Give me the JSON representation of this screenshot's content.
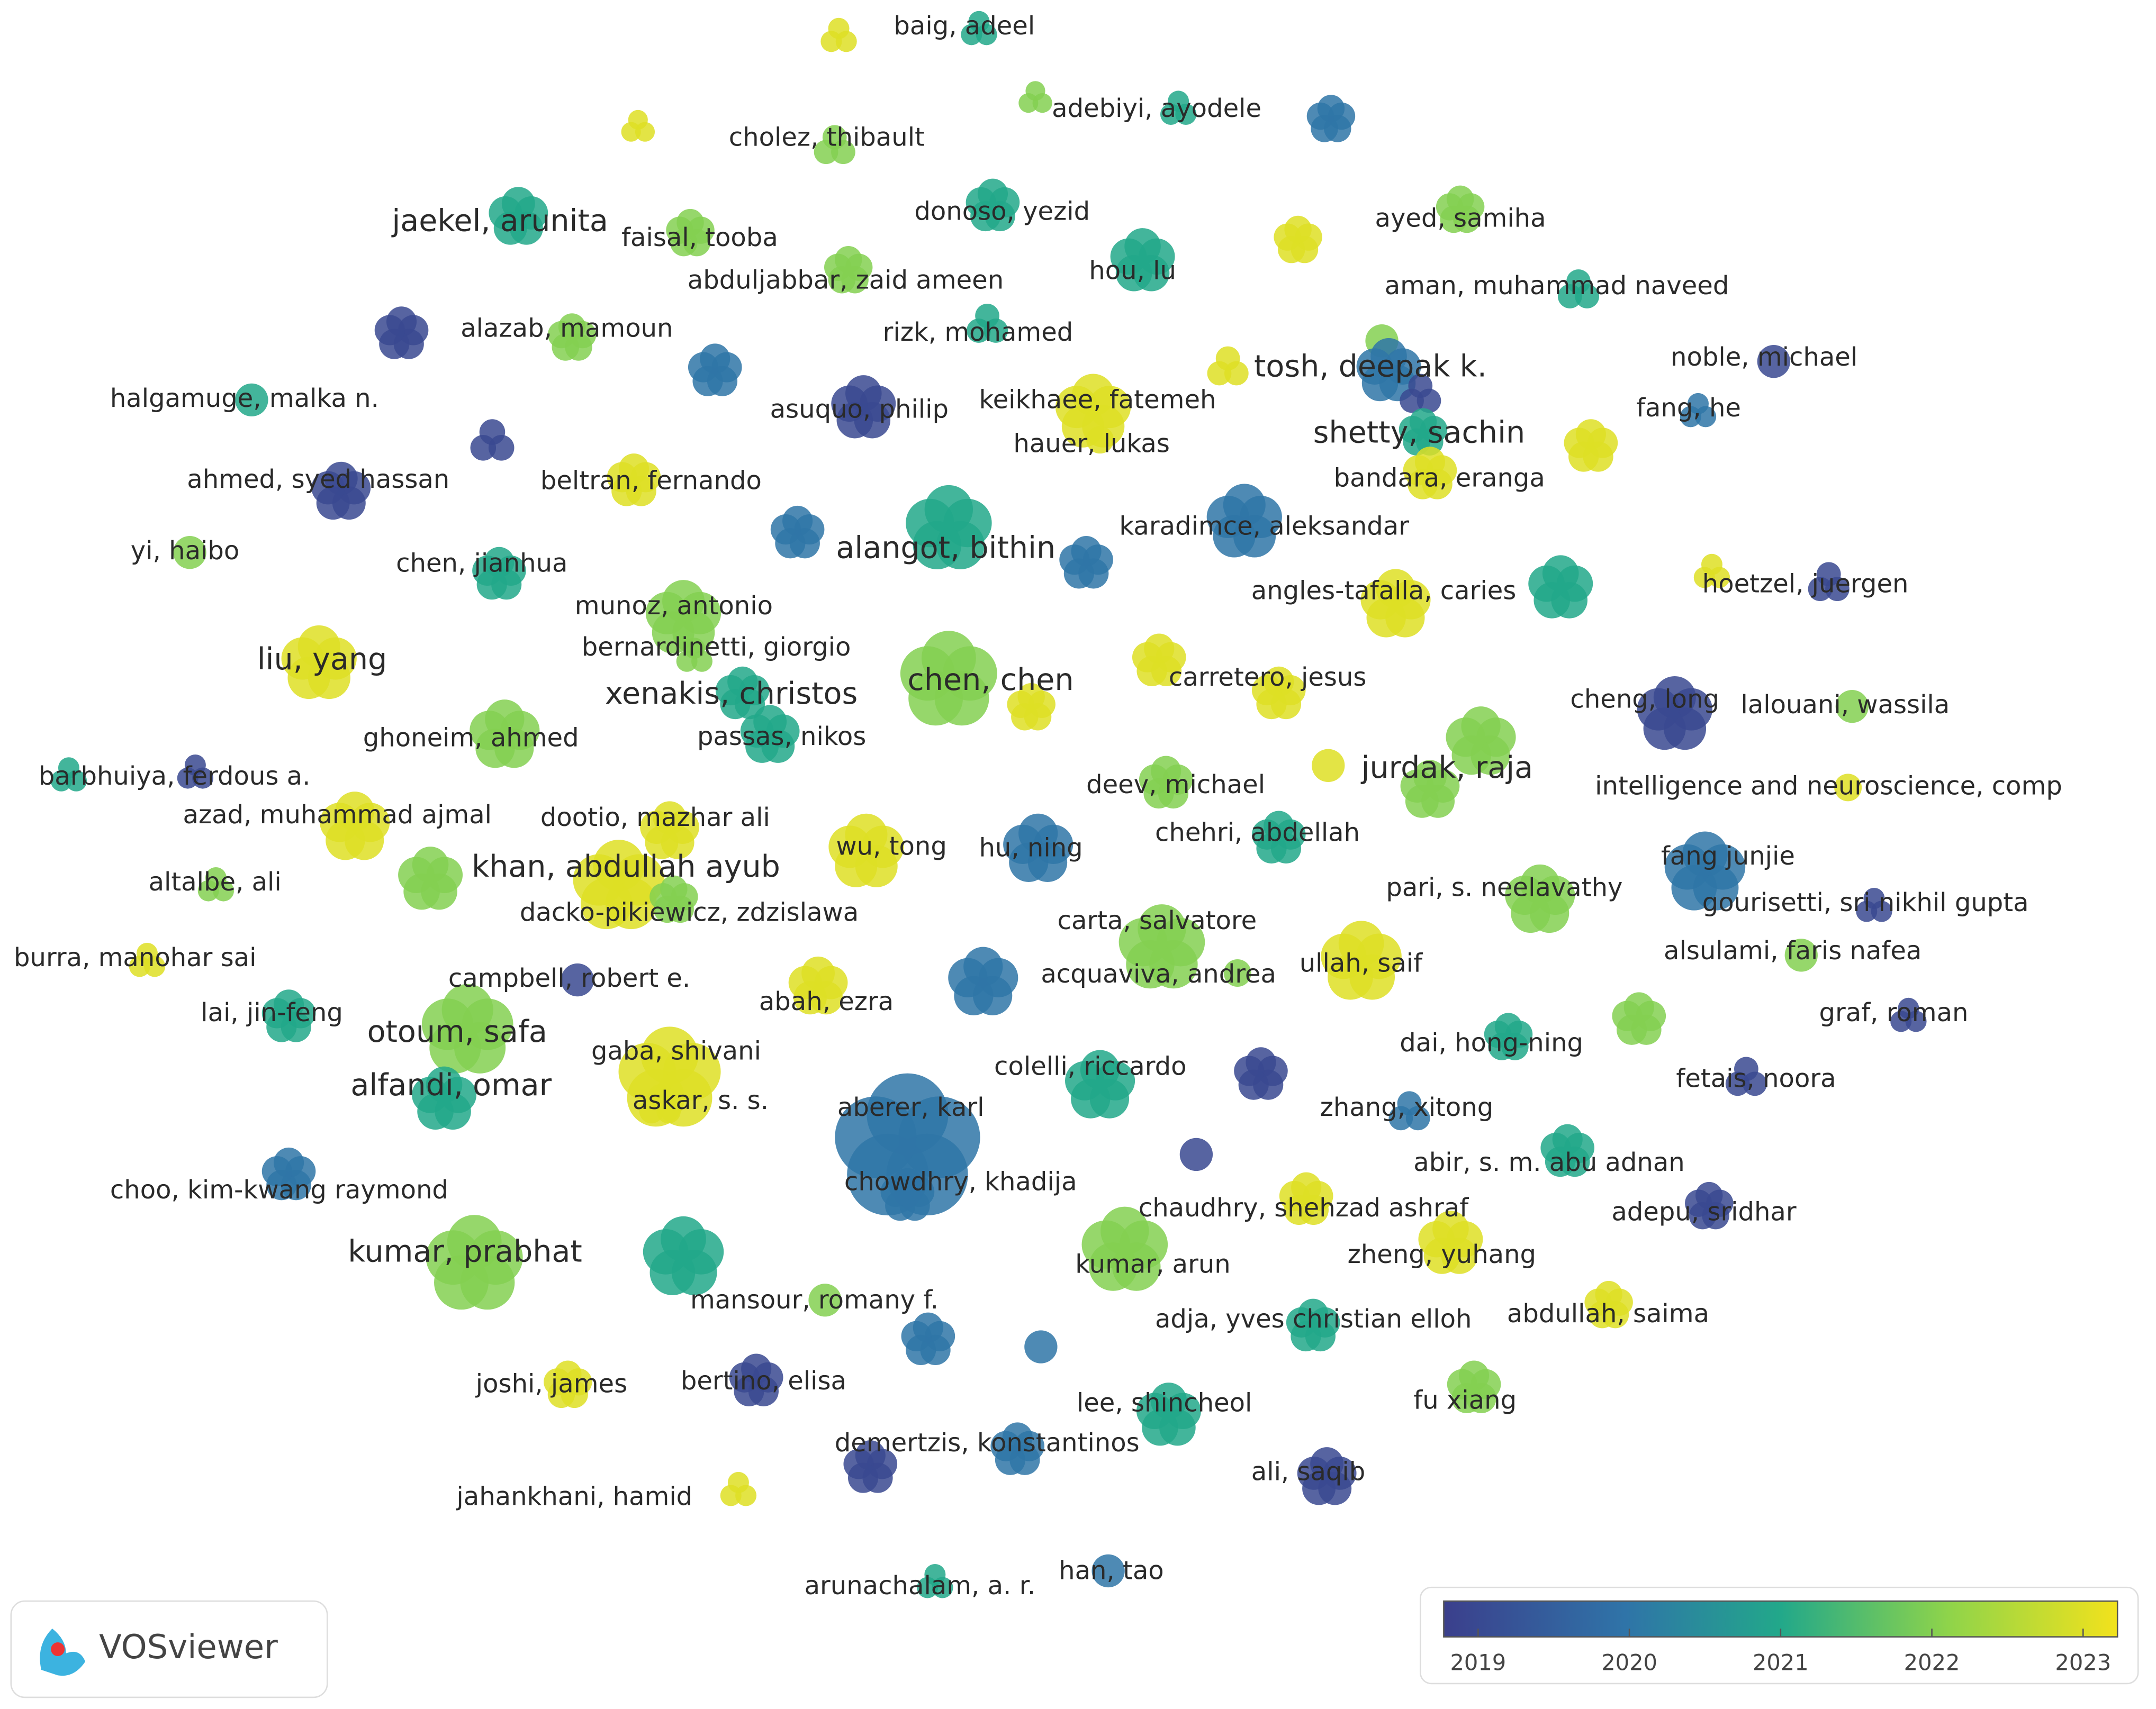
{
  "logo": "VOSviewer",
  "legend": {
    "ticks": [
      2019,
      2020,
      2021,
      2022,
      2023
    ]
  },
  "nodes": [
    {
      "year": 2023
    },
    {
      "label": "baig, adeel",
      "year": 2021
    },
    {
      "year": 2023
    },
    {
      "year": 2022
    },
    {
      "label": "adebiyi, ayodele",
      "year": 2021
    },
    {
      "year": 2020
    },
    {
      "label": "cholez, thibault",
      "year": 2022
    },
    {
      "label": "jaekel, arunita",
      "year": 2021
    },
    {
      "label": "faisal, tooba",
      "year": 2022
    },
    {
      "label": "donoso, yezid",
      "year": 2021
    },
    {
      "label": "ayed, samiha",
      "year": 2022
    },
    {
      "year": 2023
    },
    {
      "label": "abduljabbar, zaid ameen",
      "year": 2022
    },
    {
      "label": "hou, lu",
      "year": 2021
    },
    {
      "label": "aman, muhammad naveed",
      "year": 2021
    },
    {
      "year": 2019
    },
    {
      "label": "alazab, mamoun",
      "year": 2022
    },
    {
      "label": "rizk, mohamed",
      "year": 2021
    },
    {
      "year": 2020
    },
    {
      "year": 2022
    },
    {
      "label": "tosh, deepak k.",
      "year": 2020
    },
    {
      "year": 2023
    },
    {
      "year": 2019
    },
    {
      "label": "noble, michael",
      "year": 2019
    },
    {
      "label": "halgamuge, malka n.",
      "year": 2021
    },
    {
      "label": "asuquo, philip",
      "year": 2019
    },
    {
      "label": "keikhaee, fatemeh",
      "year": 2023
    },
    {
      "label": "hauer, lukas",
      "year": 2023
    },
    {
      "label": "fang, he",
      "year": 2020
    },
    {
      "label": "shetty, sachin",
      "year": 2021
    },
    {
      "year": 2023
    },
    {
      "year": 2019
    },
    {
      "label": "ahmed, syed hassan",
      "year": 2019
    },
    {
      "label": "beltran, fernando",
      "year": 2023
    },
    {
      "label": "bandara, eranga",
      "year": 2023
    },
    {
      "year": 2020
    },
    {
      "label": "alangot, bithin",
      "year": 2021
    },
    {
      "label": "karadimce, aleksandar",
      "year": 2020
    },
    {
      "year": 2020
    },
    {
      "label": "yi, haibo",
      "year": 2022
    },
    {
      "label": "chen, jianhua",
      "year": 2021
    },
    {
      "label": "angles-tafalla, caries",
      "year": 2023
    },
    {
      "year": 2021
    },
    {
      "year": 2023
    },
    {
      "label": "hoetzel, juergen",
      "year": 2019
    },
    {
      "label": "munoz, antonio",
      "year": 2022
    },
    {
      "label": "bernardinetti, giorgio",
      "year": 2022
    },
    {
      "label": "liu, yang",
      "year": 2023
    },
    {
      "label": "xenakis, christos",
      "year": 2021
    },
    {
      "label": "chen, chen",
      "year": 2022
    },
    {
      "year": 2023
    },
    {
      "year": 2023
    },
    {
      "label": "carretero, jesus",
      "year": 2023
    },
    {
      "label": "cheng, long",
      "year": 2019
    },
    {
      "label": "lalouani, wassila",
      "year": 2022
    },
    {
      "year": 2022
    },
    {
      "label": "jurdak, raja",
      "year": 2022
    },
    {
      "year": 2023
    },
    {
      "label": "ghoneim, ahmed",
      "year": 2022
    },
    {
      "label": "passas, nikos",
      "year": 2021
    },
    {
      "label": "barbhuiya, ferdous a.",
      "year": 2021
    },
    {
      "year": 2019
    },
    {
      "label": "deev, michael",
      "year": 2022
    },
    {
      "label": "intelligence and neuroscience, comp",
      "year": 2023
    },
    {
      "label": "azad, muhammad ajmal",
      "year": 2023
    },
    {
      "label": "dootio, mazhar ali",
      "year": 2023
    },
    {
      "year": 2022
    },
    {
      "label": "khan, abdullah ayub",
      "year": 2023
    },
    {
      "label": "dacko-pikiewicz, zdzislawa",
      "year": 2022
    },
    {
      "label": "wu, tong",
      "year": 2023
    },
    {
      "label": "hu, ning",
      "year": 2020
    },
    {
      "label": "chehri, abdellah",
      "year": 2021
    },
    {
      "label": "fang junjie",
      "year": 2020
    },
    {
      "label": "altalbe, ali",
      "year": 2022
    },
    {
      "label": "pari, s. neelavathy",
      "year": 2022
    },
    {
      "label": "gourisetti, sri nikhil gupta",
      "year": 2019
    },
    {
      "label": "carta, salvatore",
      "year": 2022
    },
    {
      "label": "acquaviva, andrea",
      "year": 2022
    },
    {
      "label": "ullah, saif",
      "year": 2023
    },
    {
      "label": "burra, manohar sai",
      "year": 2023
    },
    {
      "label": "alsulami, faris nafea",
      "year": 2022
    },
    {
      "year": 2020
    },
    {
      "label": "campbell, robert e.",
      "year": 2019
    },
    {
      "label": "abah, ezra",
      "year": 2023
    },
    {
      "label": "lai, jin-feng",
      "year": 2021
    },
    {
      "year": 2022
    },
    {
      "label": "graf, roman",
      "year": 2019
    },
    {
      "label": "otoum, safa",
      "year": 2022
    },
    {
      "label": "dai, hong-ning",
      "year": 2021
    },
    {
      "label": "gaba, shivani",
      "year": 2023
    },
    {
      "label": "askar, s. s.",
      "year": 2023
    },
    {
      "label": "colelli, riccardo",
      "year": 2021
    },
    {
      "year": 2019
    },
    {
      "label": "alfandi, omar",
      "year": 2021
    },
    {
      "label": "fetais, noora",
      "year": 2019
    },
    {
      "label": "aberer, karl",
      "year": 2020
    },
    {
      "label": "chowdhry, khadija",
      "year": 2020
    },
    {
      "label": "zhang, xitong",
      "year": 2020
    },
    {
      "year": 2019
    },
    {
      "label": "abir, s. m. abu adnan",
      "year": 2021
    },
    {
      "label": "choo, kim-kwang raymond",
      "year": 2020
    },
    {
      "label": "chaudhry, shehzad ashraf",
      "year": 2023
    },
    {
      "label": "adepu, sridhar",
      "year": 2019
    },
    {
      "label": "kumar, prabhat",
      "year": 2022
    },
    {
      "year": 2021
    },
    {
      "label": "kumar, arun",
      "year": 2022
    },
    {
      "label": "zheng, yuhang",
      "year": 2023
    },
    {
      "label": "mansour, romany f.",
      "year": 2022
    },
    {
      "label": "adja, yves christian elloh",
      "year": 2021
    },
    {
      "label": "abdullah, saima",
      "year": 2023
    },
    {
      "year": 2020
    },
    {
      "year": 2020
    },
    {
      "label": "joshi, james",
      "year": 2023
    },
    {
      "label": "bertino, elisa",
      "year": 2019
    },
    {
      "label": "fu xiang",
      "year": 2022
    },
    {
      "label": "lee, shincheol",
      "year": 2021
    },
    {
      "label": "demertzis, konstantinos",
      "year": 2019
    },
    {
      "year": 2020
    },
    {
      "label": "ali, saqib",
      "year": 2019
    },
    {
      "label": "jahankhani, hamid",
      "year": 2023
    },
    {
      "label": "arunachalam, a. r.",
      "year": 2021
    },
    {
      "label": "han, tao",
      "year": 2020
    }
  ]
}
